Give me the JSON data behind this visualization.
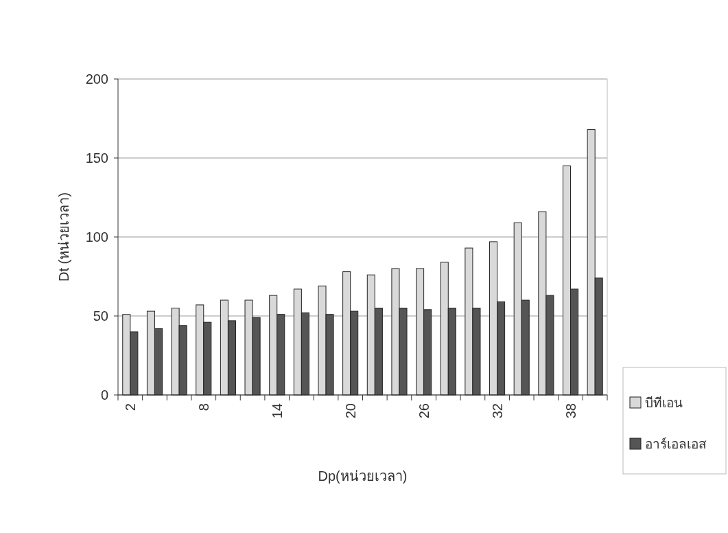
{
  "chart_data": {
    "type": "bar",
    "xlabel": "Dp(หน่วยเวลา)",
    "ylabel": "Dt (หน่วยเวลา)",
    "categories": [
      "2",
      null,
      null,
      "8",
      null,
      null,
      "14",
      null,
      null,
      "20",
      null,
      null,
      "26",
      null,
      null,
      "32",
      null,
      null,
      "38",
      null
    ],
    "series": [
      {
        "name": "บีทีเอน",
        "color": "#d9d9d9",
        "values": [
          51,
          53,
          55,
          57,
          60,
          60,
          63,
          67,
          69,
          78,
          76,
          80,
          80,
          84,
          93,
          97,
          109,
          116,
          145,
          168
        ]
      },
      {
        "name": "อาร์เอลเอส",
        "color": "#555555",
        "values": [
          40,
          42,
          44,
          46,
          47,
          49,
          51,
          52,
          51,
          53,
          55,
          55,
          54,
          55,
          55,
          59,
          60,
          63,
          67,
          74
        ]
      }
    ],
    "ylim": [
      0,
      200
    ],
    "yticks": [
      0,
      50,
      100,
      150,
      200
    ],
    "grid": "y",
    "legend": "right"
  }
}
